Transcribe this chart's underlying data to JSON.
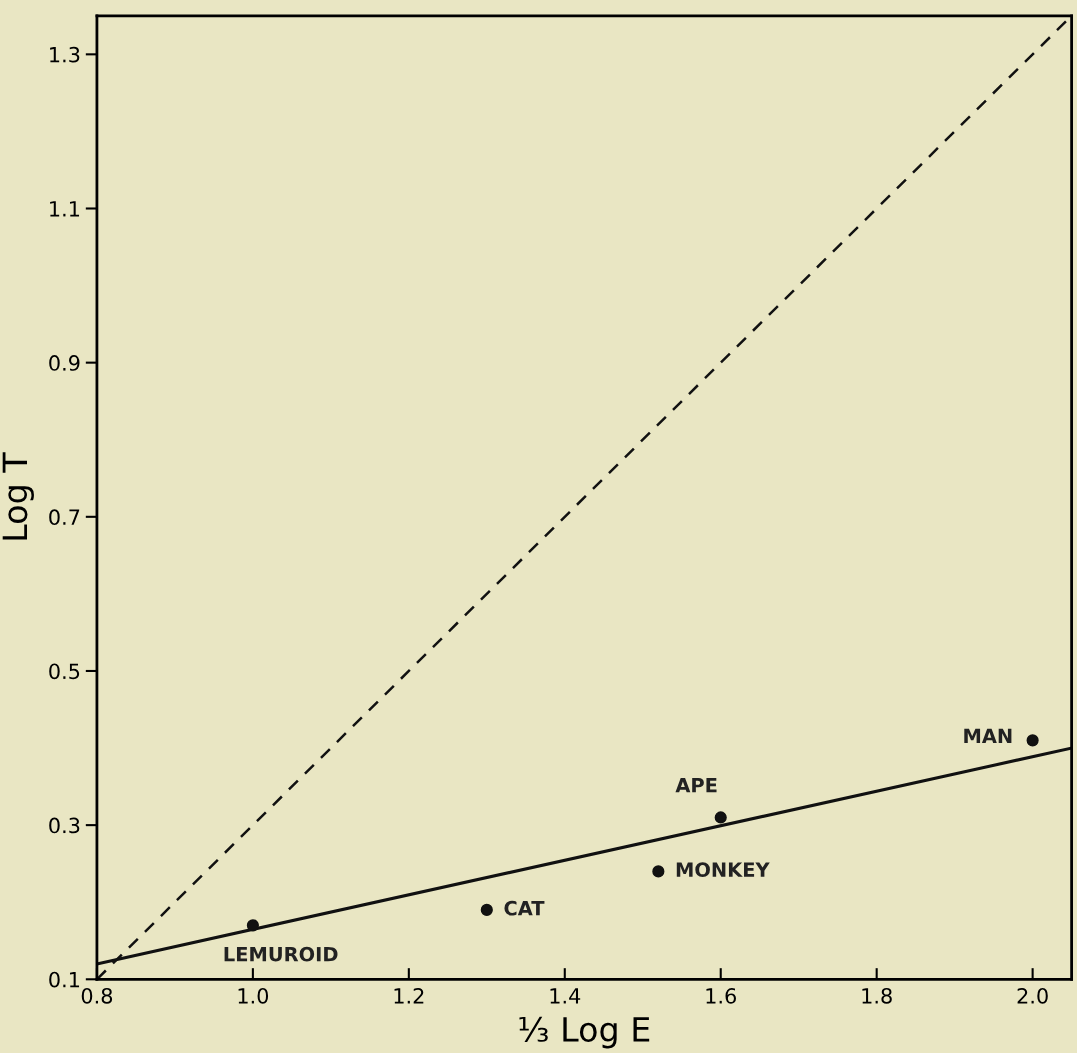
{
  "chart_data": {
    "type": "scatter",
    "xlabel": "⅓ Log E",
    "ylabel": "Log T",
    "series": [
      {
        "color": "#111111",
        "marker": "circle",
        "x": [
          1.0,
          1.3,
          1.52,
          1.6,
          2.0
        ],
        "values": [
          0.17,
          0.19,
          0.24,
          0.31,
          0.41
        ]
      },
      {
        "type": "line",
        "color": "#111111",
        "line_style": "solid",
        "x": [
          0.8,
          2.05
        ],
        "values": [
          0.12,
          0.4
        ]
      },
      {
        "type": "line",
        "color": "#111111",
        "line_style": "dashed",
        "x": [
          0.8,
          2.05
        ],
        "values": [
          0.1,
          1.35
        ]
      }
    ],
    "annotations": [
      {
        "text": "LEMUROID",
        "x": 1.0,
        "y": 0.17
      },
      {
        "text": "CAT",
        "x": 1.3,
        "y": 0.19
      },
      {
        "text": "MONKEY",
        "x": 1.52,
        "y": 0.24
      },
      {
        "text": "APE",
        "x": 1.6,
        "y": 0.31
      },
      {
        "text": "MAN",
        "x": 2.0,
        "y": 0.41
      }
    ],
    "xlim": [
      0.8,
      2.05
    ],
    "xticks": [
      {
        "value": 0.8,
        "label": "0.8"
      },
      {
        "value": 1.0,
        "label": "1.0"
      },
      1.2,
      1.4,
      1.6,
      1.8,
      {
        "value": 2.0,
        "label": "2.0"
      }
    ],
    "ylim": [
      0.1,
      1.35
    ],
    "yticks": [
      0.1,
      0.3,
      0.5,
      0.7,
      0.9,
      1.1,
      1.3
    ],
    "grid": false,
    "legend": false
  }
}
